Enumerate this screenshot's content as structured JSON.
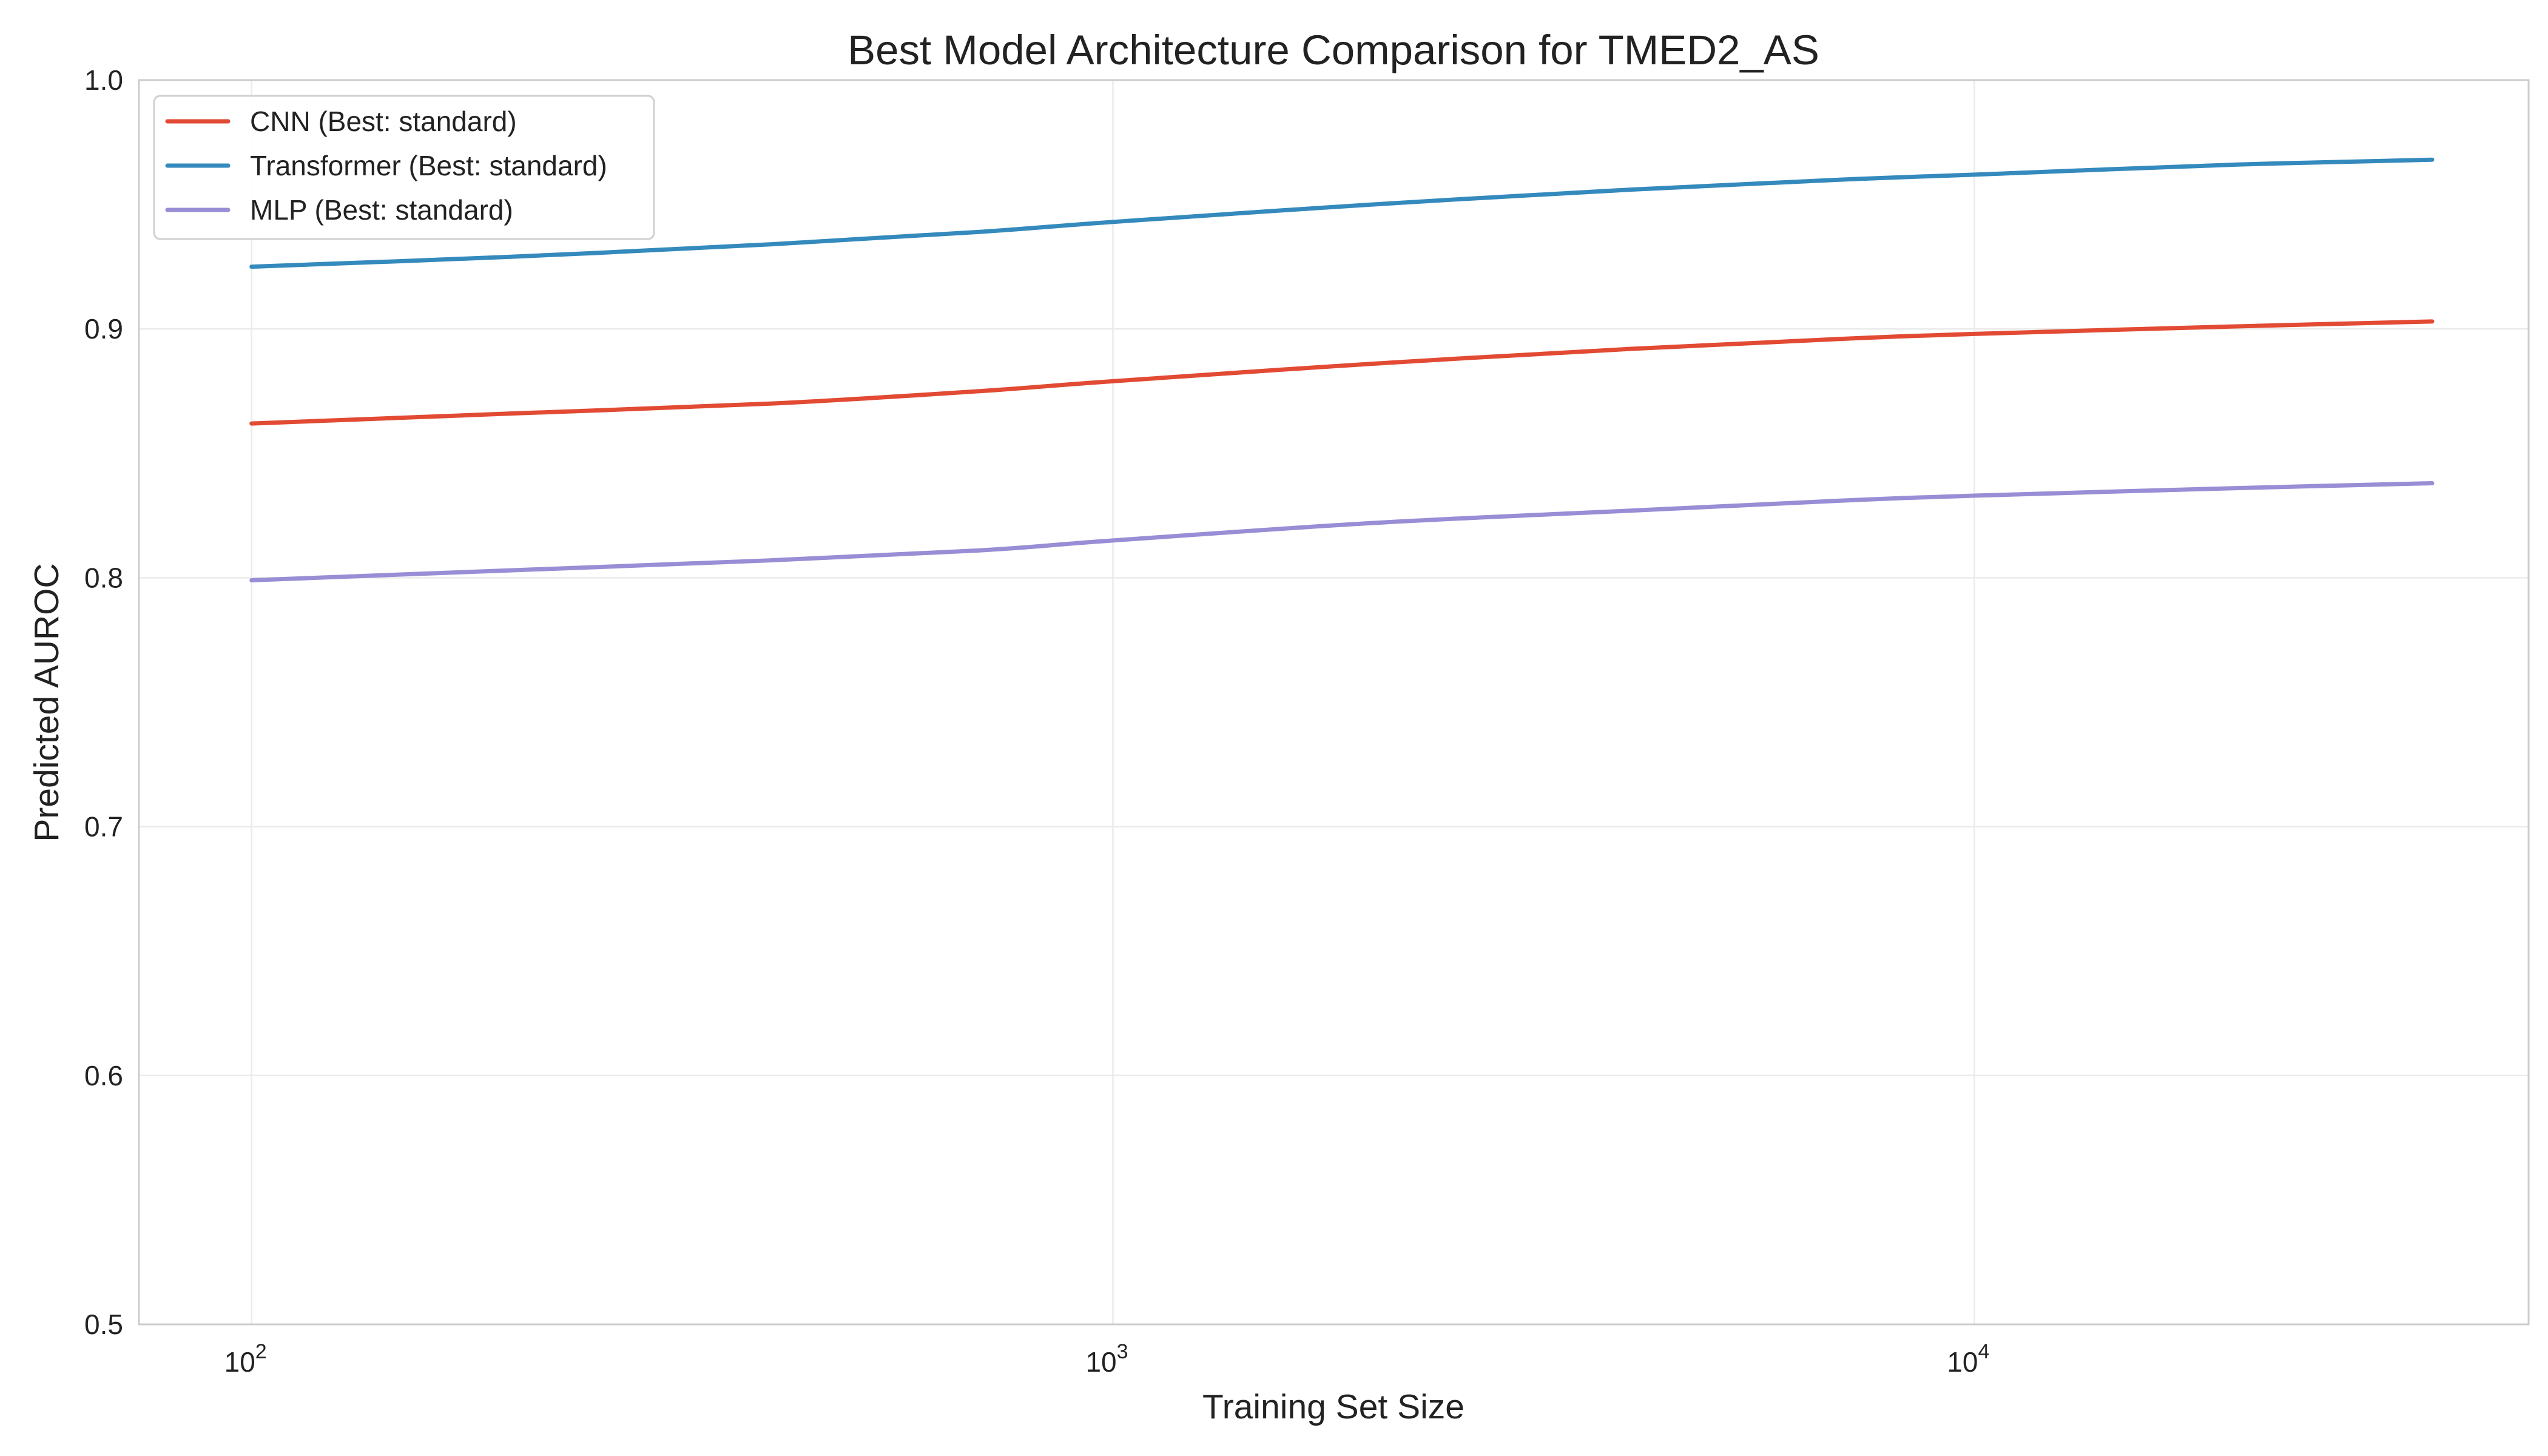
{
  "chart_data": {
    "type": "line",
    "title": "Best Model Architecture Comparison for TMED2_AS",
    "xlabel": "Training Set Size",
    "ylabel": "Predicted AUROC",
    "x_scale": "log",
    "xlim": [
      74,
      44000
    ],
    "ylim": [
      0.5,
      1.0
    ],
    "x_ticks": [
      {
        "base": "10",
        "exp": "2",
        "value": 100
      },
      {
        "base": "10",
        "exp": "3",
        "value": 1000
      },
      {
        "base": "10",
        "exp": "4",
        "value": 10000
      }
    ],
    "y_ticks": [
      "0.5",
      "0.6",
      "0.7",
      "0.8",
      "0.9",
      "1.0"
    ],
    "y_tick_values": [
      0.5,
      0.6,
      0.7,
      0.8,
      0.9,
      1.0
    ],
    "grid": true,
    "legend_position": "top-left",
    "x": [
      100,
      200,
      400,
      700,
      1000,
      2000,
      4000,
      7000,
      10000,
      20000,
      34000
    ],
    "series": [
      {
        "name": "CNN (Best: standard)",
        "color": "#e24a33",
        "values": [
          0.862,
          0.866,
          0.87,
          0.875,
          0.879,
          0.886,
          0.892,
          0.896,
          0.898,
          0.901,
          0.903
        ]
      },
      {
        "name": "Transformer (Best: standard)",
        "color": "#348abd",
        "values": [
          0.925,
          0.929,
          0.934,
          0.939,
          0.943,
          0.95,
          0.956,
          0.96,
          0.962,
          0.966,
          0.968
        ]
      },
      {
        "name": "MLP (Best: standard)",
        "color": "#988ed5",
        "values": [
          0.799,
          0.803,
          0.807,
          0.811,
          0.815,
          0.822,
          0.827,
          0.831,
          0.833,
          0.836,
          0.838
        ]
      }
    ]
  }
}
